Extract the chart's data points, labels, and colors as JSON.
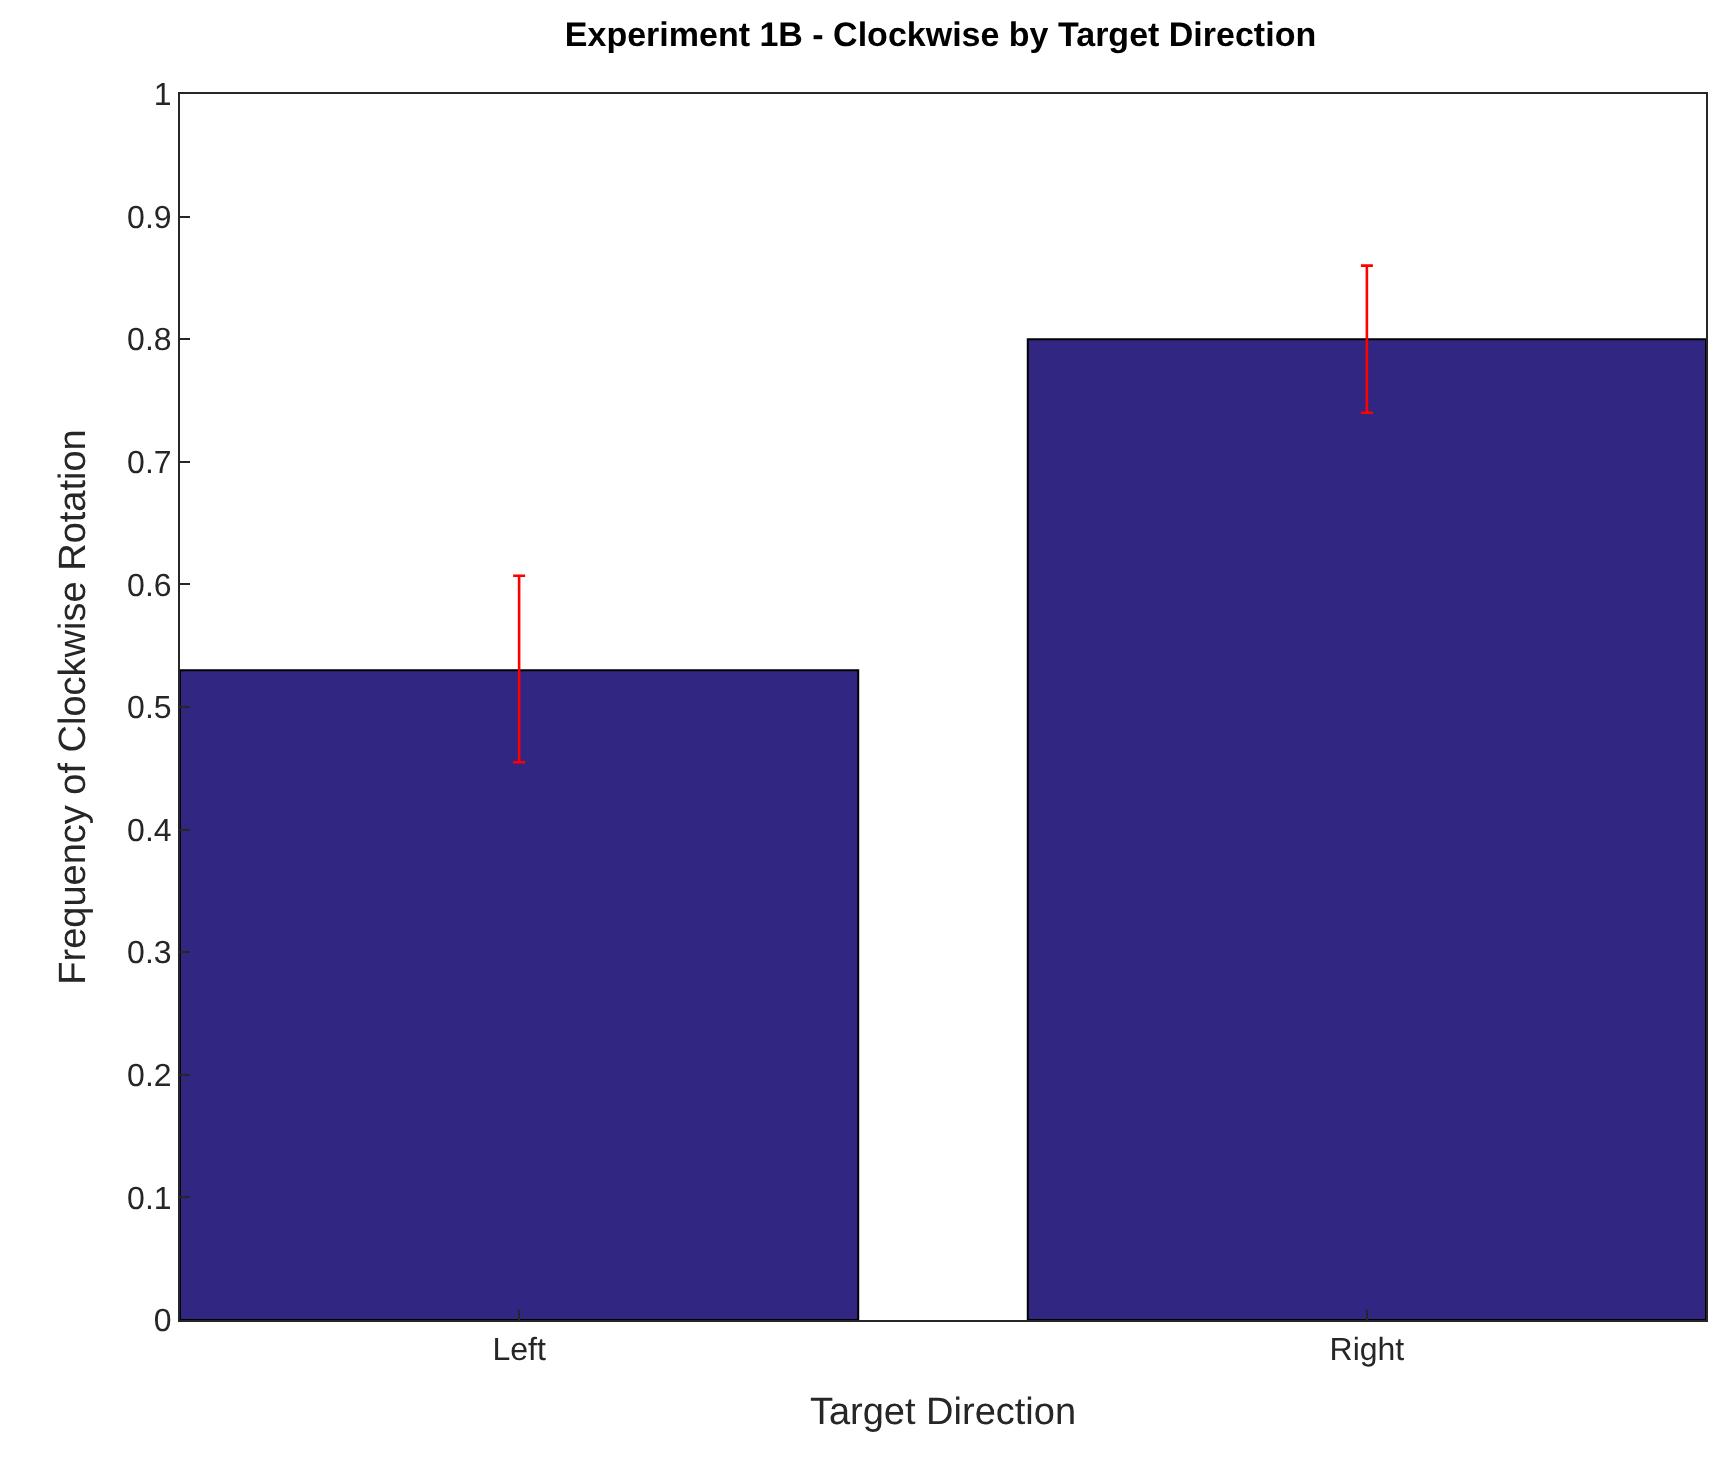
{
  "chart_data": {
    "type": "bar",
    "title": "Experiment 1B - Clockwise by Target Direction",
    "xlabel": "Target Direction",
    "ylabel": "Frequency of Clockwise Rotation",
    "categories": [
      "Left",
      "Right"
    ],
    "values": [
      0.53,
      0.8
    ],
    "errors": [
      [
        0.455,
        0.607
      ],
      [
        0.74,
        0.86
      ]
    ],
    "color": "#312783",
    "ylim": [
      0,
      1
    ],
    "yticks": [
      0,
      0.1,
      0.2,
      0.3,
      0.4,
      0.5,
      0.6,
      0.7,
      0.8,
      0.9,
      1
    ]
  }
}
